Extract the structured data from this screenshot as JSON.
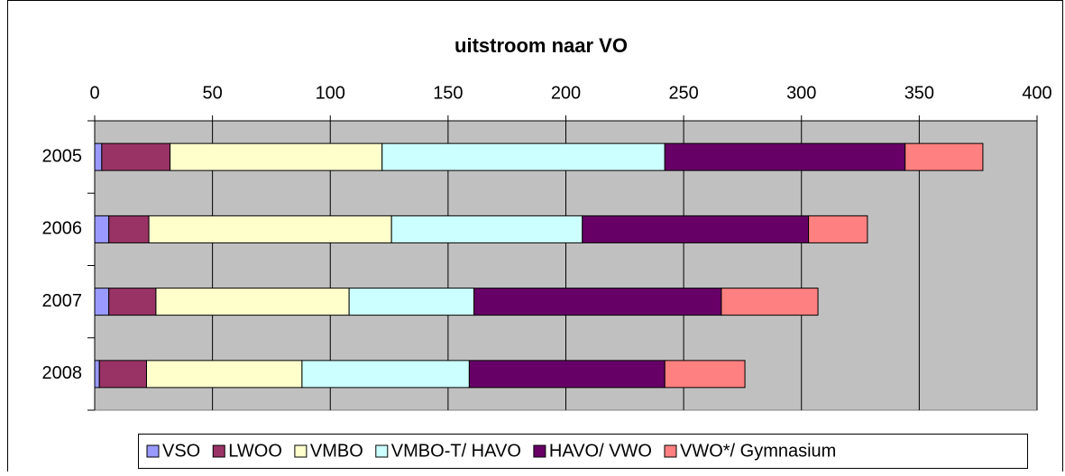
{
  "chart_data": {
    "type": "stacked_barh",
    "title": "uitstroom naar VO",
    "categories": [
      "2005",
      "2006",
      "2007",
      "2008"
    ],
    "series": [
      {
        "name": "VSO",
        "color": "#9999ff",
        "values": [
          3,
          6,
          6,
          2
        ]
      },
      {
        "name": "LWOO",
        "color": "#993366",
        "values": [
          29,
          17,
          20,
          20
        ]
      },
      {
        "name": "VMBO",
        "color": "#ffffcc",
        "values": [
          90,
          103,
          82,
          66
        ]
      },
      {
        "name": "VMBO-T/ HAVO",
        "color": "#ccffff",
        "values": [
          120,
          81,
          53,
          71
        ]
      },
      {
        "name": "HAVO/ VWO",
        "color": "#660066",
        "values": [
          102,
          96,
          105,
          83
        ]
      },
      {
        "name": "VWO*/ Gymnasium",
        "color": "#ff8080",
        "values": [
          33,
          25,
          41,
          34
        ]
      }
    ],
    "xlim": [
      0,
      400
    ],
    "xticks": [
      0,
      50,
      100,
      150,
      200,
      250,
      300,
      350,
      400
    ],
    "grid": true,
    "legend": "bottom"
  }
}
